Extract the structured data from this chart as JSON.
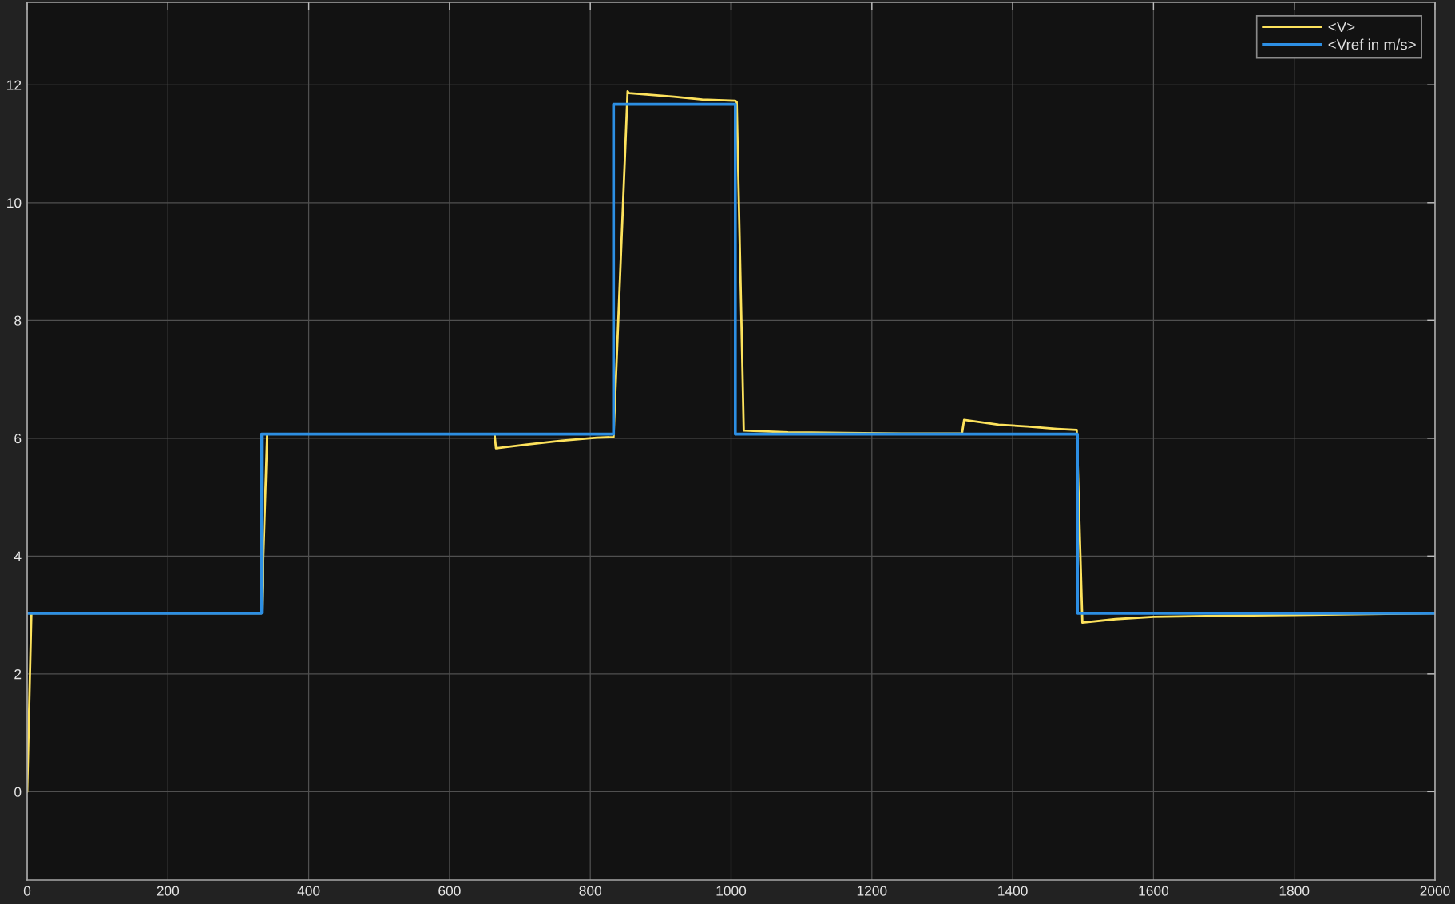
{
  "chart_data": {
    "type": "line",
    "xlim": [
      0,
      2000
    ],
    "xticks": [
      0,
      200,
      400,
      600,
      800,
      1000,
      1200,
      1400,
      1600,
      1800,
      2000
    ],
    "ylim": [
      -1.5,
      13.4
    ],
    "yticks": [
      0,
      2,
      4,
      6,
      8,
      10,
      12
    ],
    "grid": true,
    "legend": "top right",
    "series": [
      {
        "name": "<V>",
        "color": "#fde25c",
        "x": [
          0,
          6,
          333,
          341,
          664,
          666,
          708,
          759,
          809,
          833,
          853,
          855,
          919,
          959,
          1006,
          1008,
          1018,
          1081,
          1161,
          1242,
          1328,
          1331,
          1380,
          1421,
          1463,
          1491,
          1499,
          1546,
          1600,
          1711,
          1800,
          1930,
          2000
        ],
        "values": [
          0,
          3.03,
          3.03,
          6.07,
          6.07,
          5.83,
          5.89,
          5.96,
          6.01,
          6.02,
          11.89,
          11.86,
          11.8,
          11.75,
          11.73,
          11.71,
          6.13,
          6.1,
          6.09,
          6.08,
          6.08,
          6.31,
          6.23,
          6.2,
          6.16,
          6.14,
          2.87,
          2.93,
          2.97,
          2.99,
          3.0,
          3.02,
          3.03
        ]
      },
      {
        "name": "<Vref in m/s>",
        "color": "#2d8fe3",
        "type": "step",
        "x": [
          0,
          333,
          833,
          1006,
          1492,
          2000
        ],
        "values": [
          3.03,
          6.07,
          11.67,
          6.07,
          3.03,
          3.03
        ]
      }
    ]
  }
}
